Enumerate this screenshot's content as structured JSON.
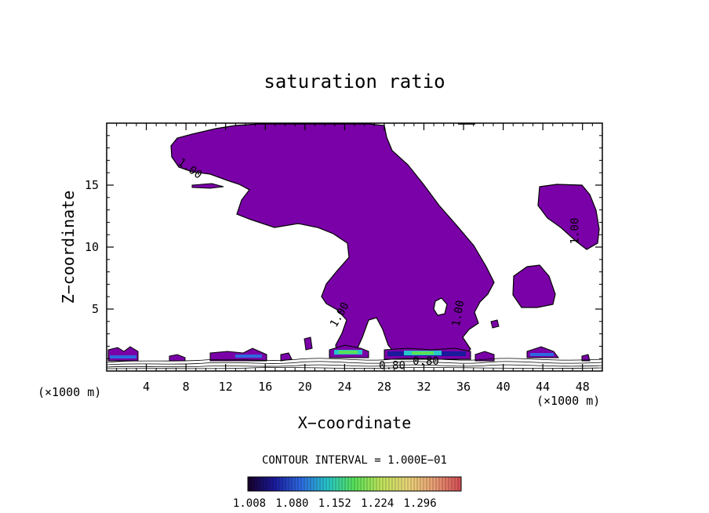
{
  "chart_data": {
    "type": "contour",
    "title": "saturation ratio",
    "xlabel": "X−coordinate",
    "ylabel": "Z−coordinate",
    "x_units_label_left": "(×1000 m)",
    "x_units_label_right": "(×1000 m)",
    "xlim": [
      0,
      50
    ],
    "ylim": [
      0,
      20
    ],
    "xticks": [
      4,
      8,
      12,
      16,
      20,
      24,
      28,
      32,
      36,
      40,
      44,
      48
    ],
    "yticks": [
      5,
      10,
      15
    ],
    "fill_color": "#7a00a8",
    "contour_labels": [
      {
        "text": "1.00",
        "x": 8.2,
        "y": 16.1,
        "angle": 35
      },
      {
        "text": "1.00",
        "x": 47.6,
        "y": 11.3,
        "angle": -90
      },
      {
        "text": "1.00",
        "x": 23.8,
        "y": 4.4,
        "angle": -60
      },
      {
        "text": "1.00",
        "x": 35.8,
        "y": 4.6,
        "angle": -80
      },
      {
        "text": "0.80",
        "x": 32.2,
        "y": 0.5,
        "angle": 0
      },
      {
        "text": "0.80",
        "x": 28.8,
        "y": 0.15,
        "angle": 0
      }
    ],
    "contour_interval_label": "CONTOUR INTERVAL = 1.000E−01",
    "colorbar": {
      "tick_labels": [
        "1.008",
        "1.080",
        "1.152",
        "1.224",
        "1.296"
      ],
      "colors": [
        "#160028",
        "#1a1a9c",
        "#2d6ae0",
        "#27c6c8",
        "#58e058",
        "#bfe25a",
        "#e8d478",
        "#e89c74",
        "#d24a52"
      ]
    }
  }
}
